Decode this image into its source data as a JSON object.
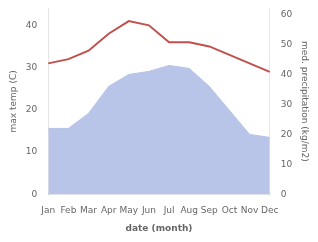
{
  "chart_data": {
    "type": "line",
    "categories": [
      "Jan",
      "Feb",
      "Mar",
      "Apr",
      "May",
      "Jun",
      "Jul",
      "Aug",
      "Sep",
      "Oct",
      "Nov",
      "Dec"
    ],
    "xlabel": "date (month)",
    "ylabel": "max temp (C)",
    "y2label": "med. precipitation (kg/m2)",
    "series": [
      {
        "type": "area",
        "color": "#b8c4e8",
        "axis": "y2",
        "values": [
          22,
          22,
          27,
          36,
          40,
          41,
          43,
          42,
          36,
          28,
          20,
          19
        ]
      },
      {
        "type": "line",
        "color": "#c0504d",
        "values": [
          31,
          32,
          34,
          38,
          41,
          40,
          36,
          36,
          35,
          33,
          31,
          29
        ]
      }
    ],
    "ylim": [
      0,
      44
    ],
    "yticks": [
      0,
      10,
      20,
      30,
      40
    ],
    "y2lim": [
      0,
      62
    ],
    "y2ticks": [
      0,
      10,
      20,
      30,
      40,
      50,
      60
    ],
    "grid": false
  }
}
